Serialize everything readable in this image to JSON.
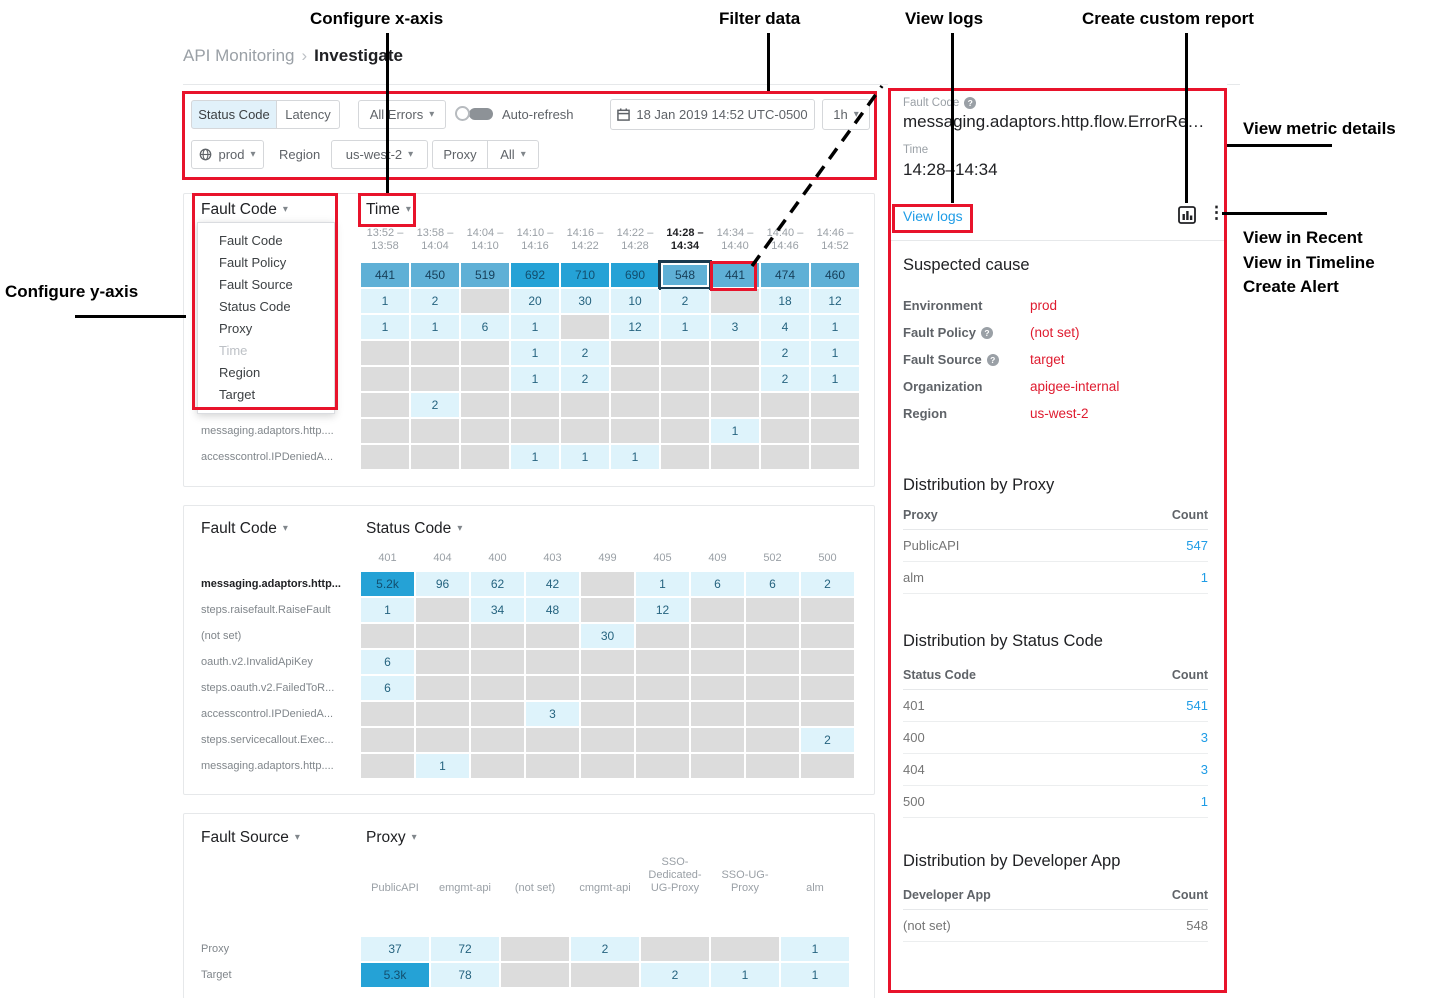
{
  "breadcrumb": {
    "parent": "API Monitoring",
    "separator": "›",
    "current": "Investigate"
  },
  "toolbar": {
    "tabs": [
      {
        "label": "Status Code"
      },
      {
        "label": "Latency"
      }
    ],
    "error_filter": "All Errors",
    "auto_refresh_label": "Auto-refresh",
    "datetime": "18 Jan 2019 14:52 UTC-0500",
    "range": "1h",
    "env": "prod",
    "region_label": "Region",
    "region_value": "us-west-2",
    "proxy_label": "Proxy",
    "proxy_value": "All"
  },
  "axis_menu": {
    "items": [
      {
        "label": "Fault Code"
      },
      {
        "label": "Fault Policy"
      },
      {
        "label": "Fault Source"
      },
      {
        "label": "Status Code"
      },
      {
        "label": "Proxy"
      },
      {
        "label": "Time",
        "disabled": true
      },
      {
        "label": "Region"
      },
      {
        "label": "Target"
      }
    ]
  },
  "heatmaps": [
    {
      "y_axis": "Fault Code",
      "x_axis": "Time",
      "columns": [
        {
          "text": "13:52 –\n13:58"
        },
        {
          "text": "13:58 –\n14:04"
        },
        {
          "text": "14:04 –\n14:10"
        },
        {
          "text": "14:10 –\n14:16"
        },
        {
          "text": "14:16 –\n14:22"
        },
        {
          "text": "14:22 –\n14:28"
        },
        {
          "text": "14:28 –\n14:34",
          "bold": true
        },
        {
          "text": "14:34 –\n14:40"
        },
        {
          "text": "14:40 –\n14:46"
        },
        {
          "text": "14:46 –\n14:52"
        }
      ],
      "rows": [
        {
          "label": "",
          "cells": [
            {
              "v": "441",
              "l": "m"
            },
            {
              "v": "450",
              "l": "m"
            },
            {
              "v": "519",
              "l": "m"
            },
            {
              "v": "692",
              "l": "d"
            },
            {
              "v": "710",
              "l": "d"
            },
            {
              "v": "690",
              "l": "d"
            },
            {
              "v": "548",
              "l": "m",
              "sel": true
            },
            {
              "v": "441",
              "l": "m"
            },
            {
              "v": "474",
              "l": "m"
            },
            {
              "v": "460",
              "l": "m"
            }
          ]
        },
        {
          "label": "",
          "cells": [
            {
              "v": "1"
            },
            {
              "v": "2"
            },
            null,
            {
              "v": "20"
            },
            {
              "v": "30"
            },
            {
              "v": "10"
            },
            {
              "v": "2"
            },
            null,
            {
              "v": "18"
            },
            {
              "v": "12"
            }
          ]
        },
        {
          "label": "",
          "cells": [
            {
              "v": "1"
            },
            {
              "v": "1"
            },
            {
              "v": "6"
            },
            {
              "v": "1"
            },
            null,
            {
              "v": "12"
            },
            {
              "v": "1"
            },
            {
              "v": "3"
            },
            {
              "v": "4"
            },
            {
              "v": "1"
            }
          ]
        },
        {
          "label": "",
          "cells": [
            null,
            null,
            null,
            {
              "v": "1"
            },
            {
              "v": "2"
            },
            null,
            null,
            null,
            {
              "v": "2"
            },
            {
              "v": "1"
            }
          ]
        },
        {
          "label": "",
          "cells": [
            null,
            null,
            null,
            {
              "v": "1"
            },
            {
              "v": "2"
            },
            null,
            null,
            null,
            {
              "v": "2"
            },
            {
              "v": "1"
            }
          ]
        },
        {
          "label": "",
          "cells": [
            null,
            {
              "v": "2"
            },
            null,
            null,
            null,
            null,
            null,
            null,
            null,
            null
          ]
        },
        {
          "label": "messaging.adaptors.http....",
          "cells": [
            null,
            null,
            null,
            null,
            null,
            null,
            null,
            {
              "v": "1"
            },
            null,
            null
          ]
        },
        {
          "label": "accesscontrol.IPDeniedA...",
          "cells": [
            null,
            null,
            null,
            {
              "v": "1"
            },
            {
              "v": "1"
            },
            {
              "v": "1"
            },
            null,
            null,
            null,
            null
          ]
        }
      ]
    },
    {
      "y_axis": "Fault Code",
      "x_axis": "Status Code",
      "columns": [
        {
          "text": "401"
        },
        {
          "text": "404"
        },
        {
          "text": "400"
        },
        {
          "text": "403"
        },
        {
          "text": "499"
        },
        {
          "text": "405"
        },
        {
          "text": "409"
        },
        {
          "text": "502"
        },
        {
          "text": "500"
        }
      ],
      "rows": [
        {
          "label": "messaging.adaptors.http...",
          "bold": true,
          "cells": [
            {
              "v": "5.2k",
              "l": "d"
            },
            {
              "v": "96"
            },
            {
              "v": "62"
            },
            {
              "v": "42"
            },
            null,
            {
              "v": "1"
            },
            {
              "v": "6"
            },
            {
              "v": "6"
            },
            {
              "v": "2"
            }
          ]
        },
        {
          "label": "steps.raisefault.RaiseFault",
          "cells": [
            {
              "v": "1"
            },
            null,
            {
              "v": "34"
            },
            {
              "v": "48"
            },
            null,
            {
              "v": "12"
            },
            null,
            null,
            null
          ]
        },
        {
          "label": "(not set)",
          "cells": [
            null,
            null,
            null,
            null,
            {
              "v": "30"
            },
            null,
            null,
            null,
            null
          ]
        },
        {
          "label": "oauth.v2.InvalidApiKey",
          "cells": [
            {
              "v": "6"
            },
            null,
            null,
            null,
            null,
            null,
            null,
            null,
            null
          ]
        },
        {
          "label": "steps.oauth.v2.FailedToR...",
          "cells": [
            {
              "v": "6"
            },
            null,
            null,
            null,
            null,
            null,
            null,
            null,
            null
          ]
        },
        {
          "label": "accesscontrol.IPDeniedA...",
          "cells": [
            null,
            null,
            null,
            {
              "v": "3"
            },
            null,
            null,
            null,
            null,
            null
          ]
        },
        {
          "label": "steps.servicecallout.Exec...",
          "cells": [
            null,
            null,
            null,
            null,
            null,
            null,
            null,
            null,
            {
              "v": "2"
            }
          ]
        },
        {
          "label": "messaging.adaptors.http....",
          "cells": [
            null,
            {
              "v": "1"
            },
            null,
            null,
            null,
            null,
            null,
            null,
            null
          ]
        }
      ]
    },
    {
      "y_axis": "Fault Source",
      "x_axis": "Proxy",
      "columns": [
        {
          "text": "PublicAPI"
        },
        {
          "text": "emgmt-api"
        },
        {
          "text": "(not set)"
        },
        {
          "text": "cmgmt-api"
        },
        {
          "text": "SSO-\nDedicated-\nUG-Proxy"
        },
        {
          "text": "SSO-UG-\nProxy"
        },
        {
          "text": "alm"
        }
      ],
      "rows": [
        {
          "label": "Proxy",
          "cells": [
            {
              "v": "37"
            },
            {
              "v": "72"
            },
            null,
            {
              "v": "2"
            },
            null,
            null,
            {
              "v": "1"
            }
          ]
        },
        {
          "label": "Target",
          "cells": [
            {
              "v": "5.3k",
              "l": "d"
            },
            {
              "v": "78"
            },
            null,
            null,
            {
              "v": "2"
            },
            {
              "v": "1"
            },
            {
              "v": "1"
            }
          ]
        }
      ]
    }
  ],
  "details": {
    "fault_code_label": "Fault Code",
    "fault_code_value": "messaging.adaptors.http.flow.ErrorRe…",
    "time_label": "Time",
    "time_value": "14:28–14:34",
    "view_logs": "View logs",
    "suspected": {
      "title": "Suspected cause",
      "rows": [
        {
          "k": "Environment",
          "v": "prod"
        },
        {
          "k": "Fault Policy",
          "help": true,
          "v": "(not set)"
        },
        {
          "k": "Fault Source",
          "help": true,
          "v": "target"
        },
        {
          "k": "Organization",
          "v": "apigee-internal"
        },
        {
          "k": "Region",
          "v": "us-west-2"
        }
      ]
    },
    "dist_proxy": {
      "title": "Distribution by Proxy",
      "col1": "Proxy",
      "col2": "Count",
      "rows": [
        {
          "name": "PublicAPI",
          "count": "547",
          "link": true
        },
        {
          "name": "alm",
          "count": "1",
          "link": true
        }
      ]
    },
    "dist_status": {
      "title": "Distribution by Status Code",
      "col1": "Status Code",
      "col2": "Count",
      "rows": [
        {
          "name": "401",
          "count": "541",
          "link": true
        },
        {
          "name": "400",
          "count": "3",
          "link": true
        },
        {
          "name": "404",
          "count": "3",
          "link": true
        },
        {
          "name": "500",
          "count": "1",
          "link": true
        }
      ]
    },
    "dist_app": {
      "title": "Distribution by Developer App",
      "col1": "Developer App",
      "col2": "Count",
      "rows": [
        {
          "name": "(not set)",
          "count": "548",
          "link": false
        }
      ]
    }
  },
  "annotations": {
    "configure_x_axis": "Configure x-axis",
    "filter_data": "Filter data",
    "view_logs": "View logs",
    "create_custom_report": "Create custom report",
    "view_metric_details": "View metric details",
    "configure_y_axis": "Configure y-axis",
    "menu_items": [
      "View in Recent",
      "View in Timeline",
      "Create Alert"
    ]
  },
  "colors": {
    "annotation_red": "#e8132b",
    "link_blue": "#1e9ce6",
    "value_red": "#df1b2f",
    "heat_dark": "#25a2d6",
    "heat_medium": "#5fb0d6",
    "heat_light": "#def3fb",
    "heat_empty": "#dcdcdc"
  }
}
